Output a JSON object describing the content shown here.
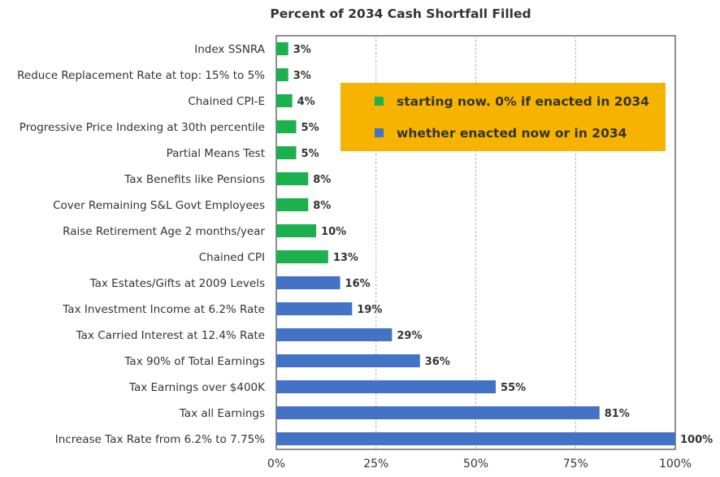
{
  "chart_data": {
    "type": "bar",
    "orientation": "horizontal",
    "title": "Percent of 2034 Cash Shortfall Filled",
    "xlabel": "",
    "ylabel": "",
    "xlim": [
      0,
      100
    ],
    "ticks": [
      "0%",
      "25%",
      "50%",
      "75%",
      "100%"
    ],
    "tick_values": [
      0,
      25,
      50,
      75,
      100
    ],
    "grid": "vertical dashed",
    "legend_position": "top-right",
    "legend": [
      {
        "text": "starting now. 0% if enacted in 2034",
        "color": "#1db04f"
      },
      {
        "text": "whether enacted now or in 2034",
        "color": "#4472c4"
      }
    ],
    "legend_background": "#f6b400",
    "categories": [
      "Index SSNRA",
      "Reduce Replacement Rate at top: 15% to 5%",
      "Chained CPI-E",
      "Progressive Price Indexing at 30th percentile",
      "Partial Means Test",
      "Tax Benefits like Pensions",
      "Cover Remaining S&L Govt Employees",
      "Raise Retirement Age 2 months/year",
      "Chained CPI",
      "Tax Estates/Gifts at 2009 Levels",
      "Tax Investment Income at 6.2% Rate",
      "Tax Carried Interest at 12.4% Rate",
      "Tax 90% of Total Earnings",
      "Tax Earnings over $400K",
      "Tax all Earnings",
      "Increase Tax Rate from 6.2% to 7.75%"
    ],
    "values": [
      3,
      3,
      4,
      5,
      5,
      8,
      8,
      10,
      13,
      16,
      19,
      29,
      36,
      55,
      81,
      100
    ],
    "value_labels": [
      "3%",
      "3%",
      "4%",
      "5%",
      "5%",
      "8%",
      "8%",
      "10%",
      "13%",
      "16%",
      "19%",
      "29%",
      "36%",
      "55%",
      "81%",
      "100%"
    ],
    "bar_group": [
      "green",
      "green",
      "green",
      "green",
      "green",
      "green",
      "green",
      "green",
      "green",
      "blue",
      "blue",
      "blue",
      "blue",
      "blue",
      "blue",
      "blue"
    ],
    "colors": {
      "green": "#1db04f",
      "blue": "#4472c4"
    }
  }
}
